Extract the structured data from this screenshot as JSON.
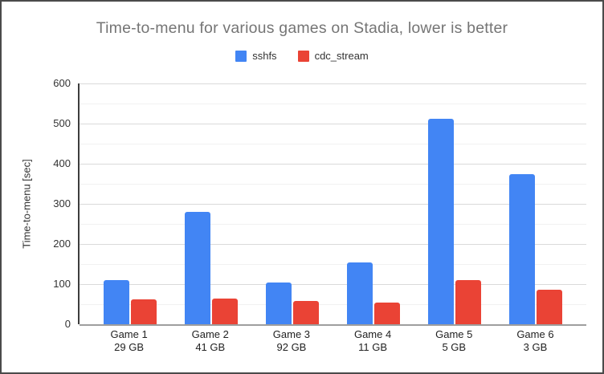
{
  "chart_data": {
    "type": "bar",
    "title": "Time-to-menu for various games on Stadia, lower is better",
    "ylabel": "Time-to-menu [sec]",
    "xlabel": "",
    "ylim": [
      0,
      600
    ],
    "y_ticks": [
      0,
      100,
      200,
      300,
      400,
      500,
      600
    ],
    "minor_grid_step": 50,
    "grid": true,
    "legend_position": "top",
    "categories": [
      {
        "label": "Game 1",
        "sublabel": "29 GB"
      },
      {
        "label": "Game 2",
        "sublabel": "41 GB"
      },
      {
        "label": "Game 3",
        "sublabel": "92 GB"
      },
      {
        "label": "Game 4",
        "sublabel": "11 GB"
      },
      {
        "label": "Game 5",
        "sublabel": "5 GB"
      },
      {
        "label": "Game 6",
        "sublabel": "3 GB"
      }
    ],
    "series": [
      {
        "name": "sshfs",
        "color": "#4285F4",
        "values": [
          110,
          280,
          105,
          155,
          512,
          375
        ]
      },
      {
        "name": "cdc_stream",
        "color": "#EA4335",
        "values": [
          62,
          64,
          59,
          54,
          110,
          86
        ]
      }
    ],
    "colors": {
      "title_text": "#757575",
      "axis_text": "#333333",
      "major_grid": "#dadada",
      "minor_grid": "#f1f1f1",
      "y_axis_line": "#3d3d3d",
      "baseline": "#9e9e9e",
      "frame_border": "#4a4a4a",
      "background": "#ffffff"
    }
  }
}
